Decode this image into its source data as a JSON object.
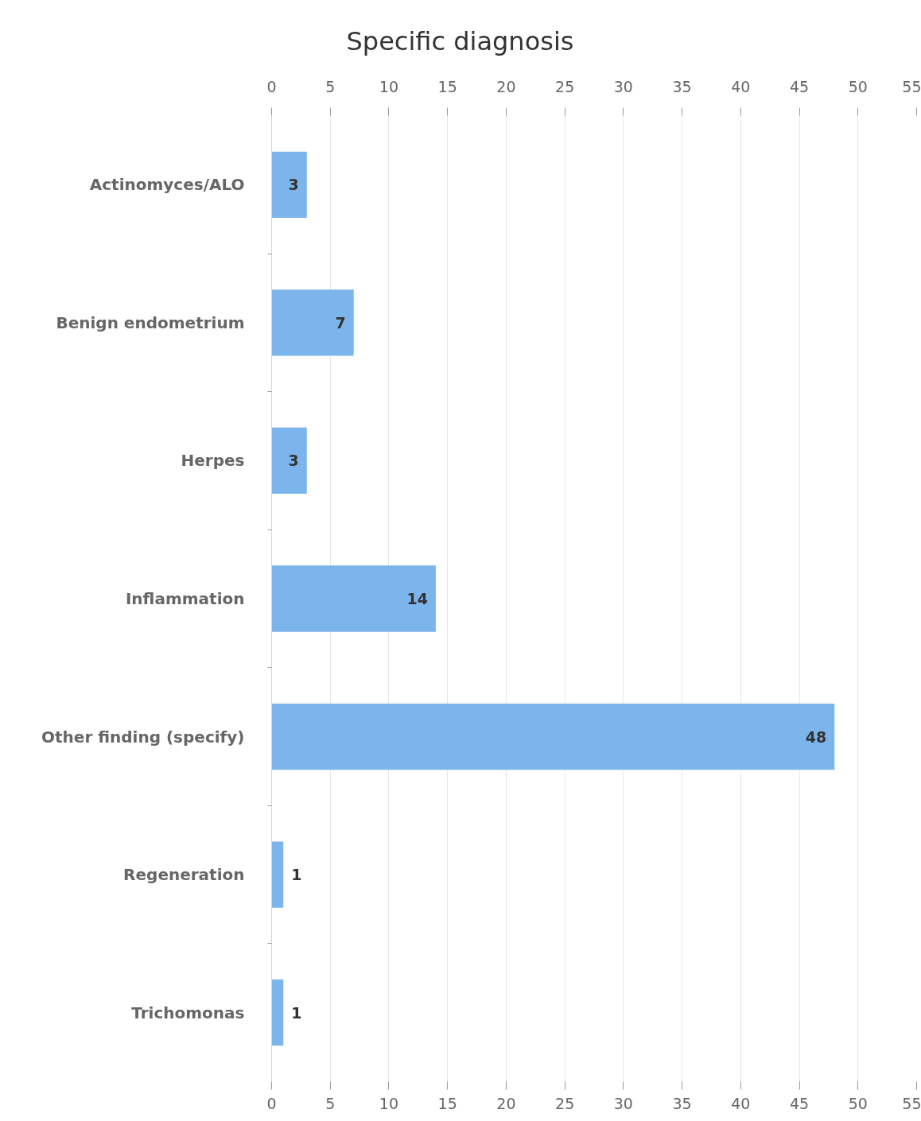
{
  "chart_data": {
    "type": "bar",
    "orientation": "horizontal",
    "title": "Specific diagnosis",
    "categories": [
      "Actinomyces/ALO",
      "Benign endometrium",
      "Herpes",
      "Inflammation",
      "Other finding (specify)",
      "Regeneration",
      "Trichomonas"
    ],
    "values": [
      3,
      7,
      3,
      14,
      48,
      1,
      1
    ],
    "color": "#7cb5ec",
    "xlim": [
      0,
      55
    ],
    "xticks": [
      0,
      5,
      10,
      15,
      20,
      25,
      30,
      35,
      40,
      45,
      50,
      55
    ],
    "x2lim": [
      0,
      55
    ],
    "x2ticks": [
      0,
      5,
      10,
      15,
      20,
      25,
      30,
      35,
      40,
      45,
      50,
      55
    ],
    "grid": "x",
    "data_labels": true
  }
}
